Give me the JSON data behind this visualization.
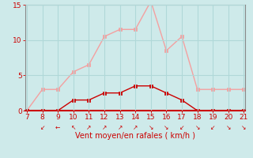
{
  "hours": [
    7,
    8,
    9,
    10,
    11,
    12,
    13,
    14,
    15,
    16,
    17,
    18,
    19,
    20,
    21
  ],
  "rafales": [
    0,
    3,
    3,
    5.5,
    6.5,
    10.5,
    11.5,
    11.5,
    15.5,
    8.5,
    10.5,
    3,
    3,
    3,
    3
  ],
  "vent_moyen": [
    0,
    0,
    0,
    1.5,
    1.5,
    2.5,
    2.5,
    3.5,
    3.5,
    2.5,
    1.5,
    0,
    0,
    0,
    0
  ],
  "rafales_color": "#f4a0a0",
  "vent_moyen_color": "#cc0000",
  "bg_color": "#ceeaea",
  "grid_color": "#b0d8d8",
  "xlabel": "Vent moyen/en rafales ( km/h )",
  "xlabel_color": "#cc0000",
  "tick_color": "#cc0000",
  "spine_color": "#888888",
  "xlim": [
    7,
    21
  ],
  "ylim": [
    0,
    15
  ],
  "yticks": [
    0,
    5,
    10,
    15
  ],
  "xticks": [
    7,
    8,
    9,
    10,
    11,
    12,
    13,
    14,
    15,
    16,
    17,
    18,
    19,
    20,
    21
  ],
  "line_width": 1.0,
  "marker_size": 2.5,
  "xlabel_fontsize": 7,
  "tick_fontsize": 6.5,
  "arrows": [
    {
      "x": 8,
      "ch": "↙"
    },
    {
      "x": 9,
      "ch": "←"
    },
    {
      "x": 10,
      "ch": "↖"
    },
    {
      "x": 11,
      "ch": "↗"
    },
    {
      "x": 12,
      "ch": "↗"
    },
    {
      "x": 13,
      "ch": "↗"
    },
    {
      "x": 14,
      "ch": "↗"
    },
    {
      "x": 15,
      "ch": "↘"
    },
    {
      "x": 16,
      "ch": "↘"
    },
    {
      "x": 17,
      "ch": "↙"
    },
    {
      "x": 18,
      "ch": "↘"
    },
    {
      "x": 19,
      "ch": "↙"
    },
    {
      "x": 20,
      "ch": "↘"
    },
    {
      "x": 21,
      "ch": "↘"
    }
  ]
}
